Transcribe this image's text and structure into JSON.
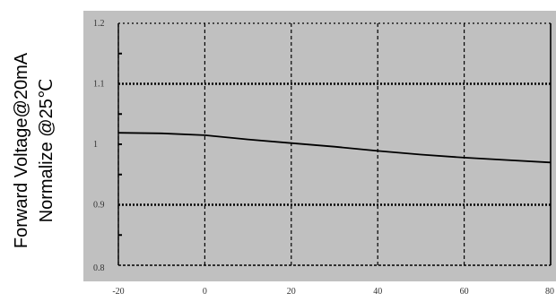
{
  "chart_data": {
    "type": "line",
    "title": "",
    "ylabel_lines": [
      "Forward Voltage@20mA",
      "Normalize @25℃"
    ],
    "xlabel": "",
    "xlim": [
      -20,
      80
    ],
    "ylim": [
      0.8,
      1.2
    ],
    "x_ticks": [
      {
        "value": -20,
        "label": "-20"
      },
      {
        "value": 0,
        "label": "0"
      },
      {
        "value": 20,
        "label": "20"
      },
      {
        "value": 40,
        "label": "40"
      },
      {
        "value": 60,
        "label": "60"
      },
      {
        "value": 80,
        "label": "80"
      }
    ],
    "y_ticks": [
      {
        "value": 1.2,
        "label": "1.2"
      },
      {
        "value": 1.1,
        "label": "1.1"
      },
      {
        "value": 1.0,
        "label": "1"
      },
      {
        "value": 0.9,
        "label": "0.9"
      },
      {
        "value": 0.8,
        "label": "0.8"
      }
    ],
    "y_minor_ticks": [
      1.15,
      1.05,
      0.95,
      0.85
    ],
    "grid": true,
    "colors": {
      "plot_background": "#c0c0c0",
      "grid": "#000000",
      "line": "#000000"
    },
    "series": [
      {
        "x": [
          -20,
          -10,
          0,
          10,
          20,
          30,
          40,
          50,
          60,
          70,
          80
        ],
        "values": [
          1.019,
          1.018,
          1.015,
          1.008,
          1.002,
          0.996,
          0.989,
          0.983,
          0.978,
          0.974,
          0.97
        ]
      }
    ]
  }
}
